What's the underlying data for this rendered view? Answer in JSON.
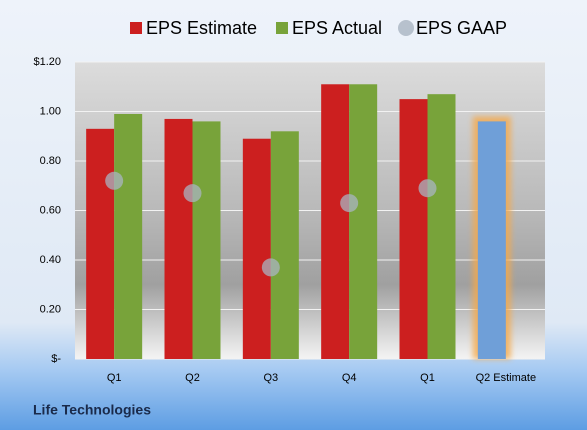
{
  "chart_data": {
    "type": "bar",
    "categories": [
      "Q1",
      "Q2",
      "Q3",
      "Q4",
      "Q1",
      "Q2 Estimate"
    ],
    "series": [
      {
        "name": "EPS Estimate",
        "color": "#cc1f1f",
        "colors": [
          "#cc1f1f",
          "#cc1f1f",
          "#cc1f1f",
          "#cc1f1f",
          "#cc1f1f",
          "#6f9fd8"
        ],
        "values": [
          0.93,
          0.97,
          0.89,
          1.11,
          1.05,
          0.96
        ]
      },
      {
        "name": "EPS Actual",
        "color": "#78a33a",
        "values": [
          0.99,
          0.96,
          0.92,
          1.11,
          1.07,
          null
        ]
      },
      {
        "name": "EPS GAAP",
        "color": "#a9b4c2",
        "marker": "circle",
        "values": [
          0.72,
          0.67,
          0.37,
          0.63,
          0.69,
          null
        ]
      }
    ],
    "ylim": [
      0,
      1.2
    ],
    "yticks": [
      {
        "value": 0,
        "label": "$-"
      },
      {
        "value": 0.2,
        "label": "0.20"
      },
      {
        "value": 0.4,
        "label": "0.40"
      },
      {
        "value": 0.6,
        "label": "0.60"
      },
      {
        "value": 0.8,
        "label": "0.80"
      },
      {
        "value": 1,
        "label": "1.00"
      },
      {
        "value": 1.2,
        "label": "$1.20"
      }
    ],
    "grid": true,
    "legend": "top",
    "footer": "Life Technologies"
  }
}
